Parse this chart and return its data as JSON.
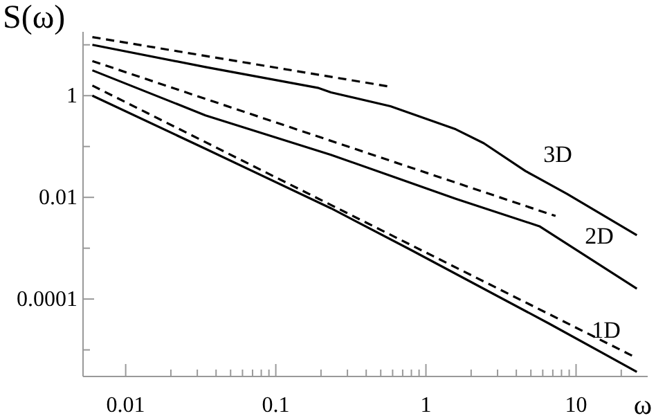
{
  "chart_data": {
    "type": "line",
    "xlabel": "ω",
    "ylabel": "S(ω)",
    "log": "xy",
    "grid": false,
    "marker": "none",
    "xlim": [
      0.0052,
      30
    ],
    "ylim": [
      3e-06,
      18
    ],
    "xticks": [
      {
        "value": 0.01,
        "label": "0.01"
      },
      {
        "value": 0.02,
        "label": null
      },
      {
        "value": 0.03,
        "label": null
      },
      {
        "value": 0.04,
        "label": null
      },
      {
        "value": 0.05,
        "label": null
      },
      {
        "value": 0.06,
        "label": null
      },
      {
        "value": 0.07,
        "label": null
      },
      {
        "value": 0.08,
        "label": null
      },
      {
        "value": 0.09,
        "label": null
      },
      {
        "value": 0.1,
        "label": "0.1"
      },
      {
        "value": 0.2,
        "label": null
      },
      {
        "value": 0.3,
        "label": null
      },
      {
        "value": 0.4,
        "label": null
      },
      {
        "value": 0.5,
        "label": null
      },
      {
        "value": 0.6,
        "label": null
      },
      {
        "value": 0.7,
        "label": null
      },
      {
        "value": 0.8,
        "label": null
      },
      {
        "value": 0.9,
        "label": null
      },
      {
        "value": 1,
        "label": "1"
      },
      {
        "value": 2,
        "label": null
      },
      {
        "value": 3,
        "label": null
      },
      {
        "value": 4,
        "label": null
      },
      {
        "value": 5,
        "label": null
      },
      {
        "value": 6,
        "label": null
      },
      {
        "value": 7,
        "label": null
      },
      {
        "value": 8,
        "label": null
      },
      {
        "value": 9,
        "label": null
      },
      {
        "value": 10,
        "label": "10"
      },
      {
        "value": 20,
        "label": null
      }
    ],
    "yticks": [
      {
        "value": 1e-05,
        "label": null
      },
      {
        "value": 0.0001,
        "label": "0.0001"
      },
      {
        "value": 0.001,
        "label": null
      },
      {
        "value": 0.01,
        "label": "0.01"
      },
      {
        "value": 0.1,
        "label": null
      },
      {
        "value": 1,
        "label": "1"
      },
      {
        "value": 10,
        "label": null
      }
    ],
    "series": [
      {
        "color": "#000000",
        "line_style": "solid",
        "x": [
          0.006,
          0.034,
          0.19,
          0.233,
          0.58,
          1.58,
          2.43,
          4.6,
          8.7,
          25.4
        ],
        "values": [
          10,
          3.66,
          1.43,
          1.16,
          0.62,
          0.218,
          0.116,
          0.033,
          0.0117,
          0.0018
        ]
      },
      {
        "color": "#000000",
        "line_style": "dashed",
        "x": [
          0.006,
          0.587
        ],
        "values": [
          14.2,
          1.49
        ]
      },
      {
        "color": "#000000",
        "line_style": "solid",
        "x": [
          0.006,
          0.034,
          0.233,
          1.58,
          5.7,
          25.4
        ],
        "values": [
          3.15,
          0.41,
          0.0687,
          0.0094,
          0.0027,
          0.00016
        ]
      },
      {
        "color": "#000000",
        "line_style": "dashed",
        "x": [
          0.006,
          7.3
        ],
        "values": [
          4.8,
          0.0043
        ]
      },
      {
        "color": "#000000",
        "line_style": "solid",
        "x": [
          0.006,
          0.034,
          0.233,
          0.78,
          6.6,
          25.4
        ],
        "values": [
          1,
          0.09,
          0.0061,
          0.00095,
          3.3e-05,
          3.7e-06
        ]
      },
      {
        "color": "#000000",
        "line_style": "dashed",
        "x": [
          0.006,
          23.6
        ],
        "values": [
          1.58,
          7.7e-06
        ]
      }
    ],
    "annotations": [
      "3D",
      "2D",
      "1D"
    ]
  }
}
